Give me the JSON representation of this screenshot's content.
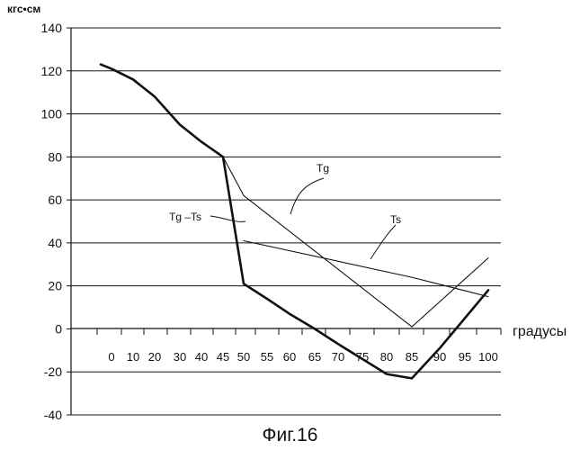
{
  "caption": "Фиг.16",
  "chart_data": {
    "type": "line",
    "ylabel": "кгс•см",
    "xlabel": "градусы",
    "ylim": [
      -40,
      140
    ],
    "yticks": [
      140,
      120,
      100,
      80,
      60,
      40,
      20,
      0,
      -20,
      -40
    ],
    "grid": true,
    "x_tick_labels": [
      "0",
      "10",
      "20",
      "30",
      "40",
      "45",
      "50",
      "55",
      "60",
      "65",
      "70",
      "75",
      "80",
      "85",
      "90",
      "95",
      "100"
    ],
    "series": [
      {
        "name": "Tg-Ts",
        "x": [
          -5,
          0,
          10,
          20,
          30,
          40,
          45,
          50,
          55,
          60,
          65,
          70,
          75,
          80,
          85,
          90,
          95,
          100
        ],
        "values": [
          123,
          121,
          116,
          108,
          95,
          87,
          80,
          21,
          14,
          7,
          0,
          -7,
          -14,
          -21,
          -23,
          -9,
          5,
          18
        ]
      },
      {
        "name": "Tg",
        "x": [
          45,
          50,
          85,
          100
        ],
        "values": [
          80,
          62,
          1,
          33
        ]
      },
      {
        "name": "Ts",
        "x": [
          50,
          85,
          100
        ],
        "values": [
          41,
          24,
          15
        ]
      }
    ],
    "annotations": [
      {
        "text": "Tg",
        "series": "Tg"
      },
      {
        "text": "Ts",
        "series": "Ts"
      },
      {
        "text": "Tg –Ts",
        "series": "Tg-Ts"
      }
    ]
  }
}
